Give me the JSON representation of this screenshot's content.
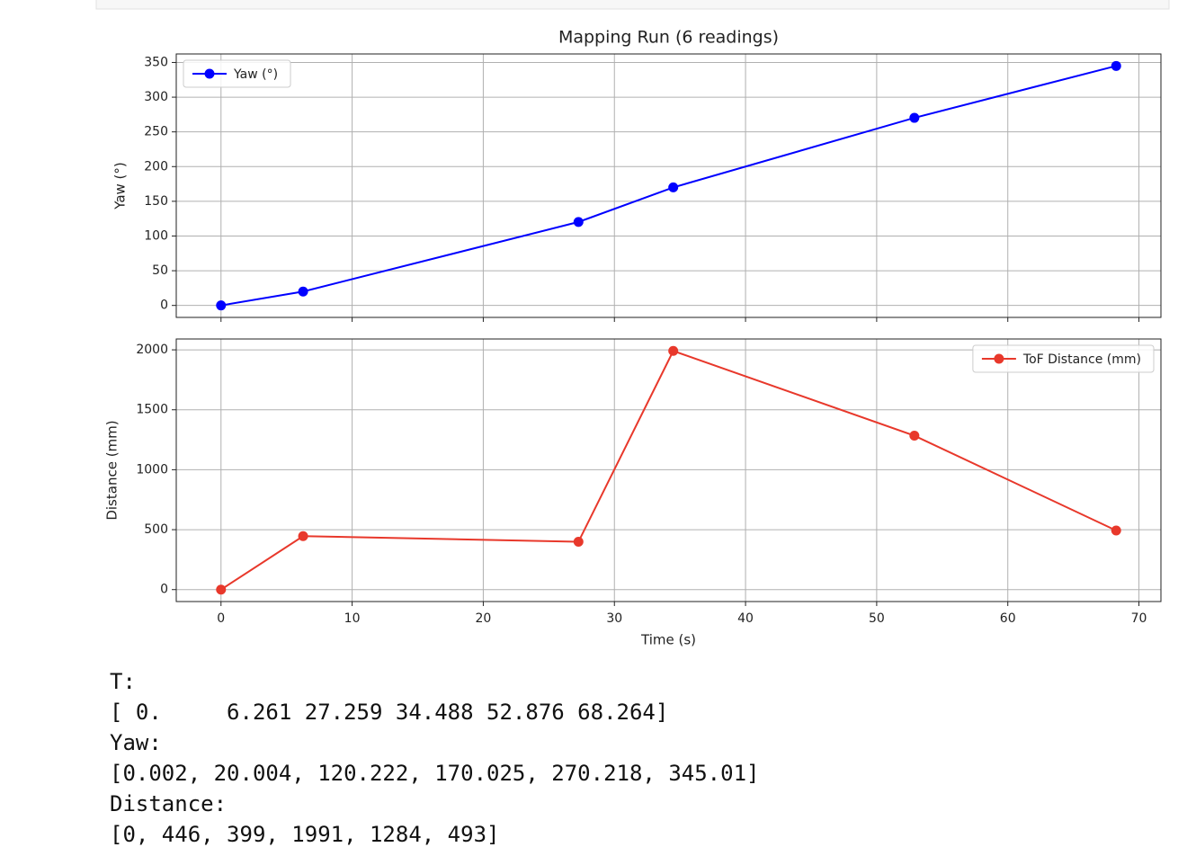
{
  "chart_data": [
    {
      "type": "line",
      "title": "Mapping Run (6 readings)",
      "ylabel": "Yaw (°)",
      "x": [
        0,
        6.261,
        27.259,
        34.488,
        52.876,
        68.264
      ],
      "series": [
        {
          "name": "Yaw (°)",
          "color": "#0000ff",
          "values": [
            0.002,
            20.004,
            120.222,
            170.025,
            270.218,
            345.01
          ]
        }
      ],
      "xlim": [
        -3.413,
        71.677
      ],
      "xticks": [
        0,
        10,
        20,
        30,
        40,
        50,
        60,
        70
      ],
      "ylim": [
        -17.25,
        362.26
      ],
      "yticks": [
        0,
        50,
        100,
        150,
        200,
        250,
        300,
        350
      ],
      "grid": true,
      "legend": "upper-left"
    },
    {
      "type": "line",
      "xlabel": "Time (s)",
      "ylabel": "Distance (mm)",
      "x": [
        0,
        6.261,
        27.259,
        34.488,
        52.876,
        68.264
      ],
      "series": [
        {
          "name": "ToF Distance (mm)",
          "color": "#e8382b",
          "values": [
            0,
            446,
            399,
            1991,
            1284,
            493
          ]
        }
      ],
      "xlim": [
        -3.413,
        71.677
      ],
      "xticks": [
        0,
        10,
        20,
        30,
        40,
        50,
        60,
        70
      ],
      "ylim": [
        -99.55,
        2090.55
      ],
      "yticks": [
        0,
        500,
        1000,
        1500,
        2000
      ],
      "grid": true,
      "legend": "upper-right"
    }
  ],
  "output": {
    "lines": [
      "T:",
      "[ 0.     6.261 27.259 34.488 52.876 68.264]",
      "Yaw:",
      "[0.002, 20.004, 120.222, 170.025, 270.218, 345.01]",
      "Distance:",
      "[0, 446, 399, 1991, 1284, 493]"
    ]
  }
}
